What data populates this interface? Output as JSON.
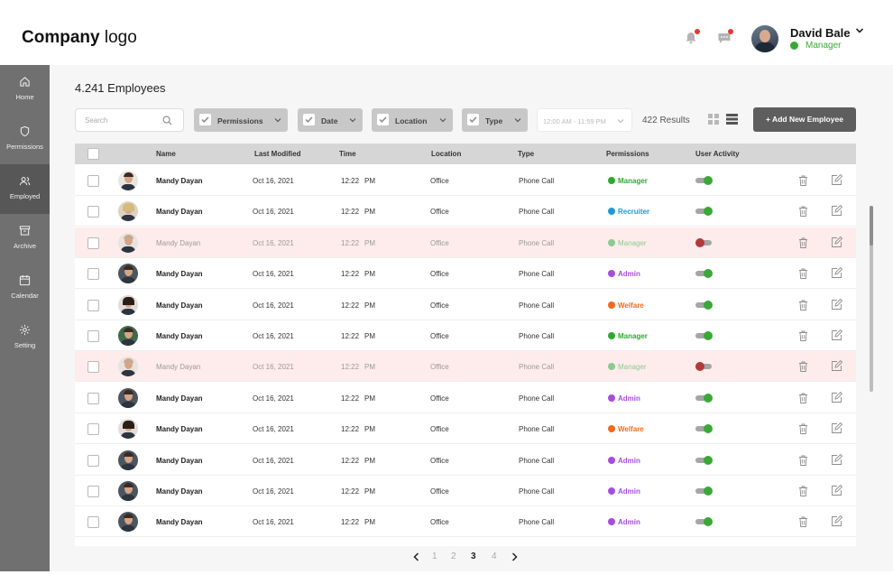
{
  "header": {
    "logo_bold": "Company",
    "logo_light": "logo",
    "user_name": "David Bale",
    "user_role": "Manager",
    "notification_icon": "bell-icon",
    "message_icon": "chat-icon"
  },
  "sidebar": {
    "items": [
      {
        "label": "Home",
        "icon": "home-icon"
      },
      {
        "label": "Permissions",
        "icon": "shield-icon"
      },
      {
        "label": "Employed",
        "icon": "users-icon",
        "active": true
      },
      {
        "label": "Archive",
        "icon": "archive-icon"
      },
      {
        "label": "Calendar",
        "icon": "calendar-icon"
      },
      {
        "label": "Setting",
        "icon": "gear-icon"
      }
    ]
  },
  "main": {
    "title": "4.241 Employees",
    "search_placeholder": "Search",
    "filters": [
      "Permissions",
      "Date",
      "Location",
      "Type"
    ],
    "time_range": "12:00 AM  -  11:59 PM",
    "results": "422 Results",
    "add_button": "+ Add New Employee"
  },
  "table": {
    "headers": [
      "Name",
      "Last Modified",
      "Time",
      "Location",
      "Type",
      "Permissions",
      "User Activity"
    ],
    "rows": [
      {
        "name": "Mandy Dayan",
        "modified": "Oct 16, 2021",
        "time": "12:22",
        "ampm": "PM",
        "location": "Office",
        "type": "Phone Call",
        "permission": "Manager",
        "perm_color": "#2eaa2e",
        "active": true,
        "disabled": false,
        "avatar": "v1"
      },
      {
        "name": "Mandy Dayan",
        "modified": "Oct 16, 2021",
        "time": "12:22",
        "ampm": "PM",
        "location": "Office",
        "type": "Phone Call",
        "permission": "Recruiter",
        "perm_color": "#1e9bd7",
        "active": true,
        "disabled": false,
        "avatar": "v2"
      },
      {
        "name": "Mandy Dayan",
        "modified": "Oct 16, 2021",
        "time": "12:22",
        "ampm": "PM",
        "location": "Office",
        "type": "Phone Call",
        "permission": "Manager",
        "perm_color": "#8fc98f",
        "active": false,
        "disabled": true,
        "avatar": "v3"
      },
      {
        "name": "Mandy Dayan",
        "modified": "Oct 16, 2021",
        "time": "12:22",
        "ampm": "PM",
        "location": "Office",
        "type": "Phone Call",
        "permission": "Admin",
        "perm_color": "#a64de0",
        "active": true,
        "disabled": false,
        "avatar": "v4"
      },
      {
        "name": "Mandy Dayan",
        "modified": "Oct 16, 2021",
        "time": "12:22",
        "ampm": "PM",
        "location": "Office",
        "type": "Phone Call",
        "permission": "Welfare",
        "perm_color": "#f06a1a",
        "active": true,
        "disabled": false,
        "avatar": "v5"
      },
      {
        "name": "Mandy Dayan",
        "modified": "Oct 16, 2021",
        "time": "12:22",
        "ampm": "PM",
        "location": "Office",
        "type": "Phone Call",
        "permission": "Manager",
        "perm_color": "#2eaa2e",
        "active": true,
        "disabled": false,
        "avatar": "v6"
      },
      {
        "name": "Mandy Dayan",
        "modified": "Oct 16, 2021",
        "time": "12:22",
        "ampm": "PM",
        "location": "Office",
        "type": "Phone Call",
        "permission": "Manager",
        "perm_color": "#8fc98f",
        "active": false,
        "disabled": true,
        "avatar": "v3"
      },
      {
        "name": "Mandy Dayan",
        "modified": "Oct 16, 2021",
        "time": "12:22",
        "ampm": "PM",
        "location": "Office",
        "type": "Phone Call",
        "permission": "Admin",
        "perm_color": "#a64de0",
        "active": true,
        "disabled": false,
        "avatar": "v4"
      },
      {
        "name": "Mandy Dayan",
        "modified": "Oct 16, 2021",
        "time": "12:22",
        "ampm": "PM",
        "location": "Office",
        "type": "Phone Call",
        "permission": "Welfare",
        "perm_color": "#f06a1a",
        "active": true,
        "disabled": false,
        "avatar": "v5"
      },
      {
        "name": "Mandy Dayan",
        "modified": "Oct 16, 2021",
        "time": "12:22",
        "ampm": "PM",
        "location": "Office",
        "type": "Phone Call",
        "permission": "Admin",
        "perm_color": "#a64de0",
        "active": true,
        "disabled": false,
        "avatar": "v4"
      },
      {
        "name": "Mandy Dayan",
        "modified": "Oct 16, 2021",
        "time": "12:22",
        "ampm": "PM",
        "location": "Office",
        "type": "Phone Call",
        "permission": "Admin",
        "perm_color": "#a64de0",
        "active": true,
        "disabled": false,
        "avatar": "v4"
      },
      {
        "name": "Mandy Dayan",
        "modified": "Oct 16, 2021",
        "time": "12:22",
        "ampm": "PM",
        "location": "Office",
        "type": "Phone Call",
        "permission": "Admin",
        "perm_color": "#a64de0",
        "active": true,
        "disabled": false,
        "avatar": "v4"
      }
    ]
  },
  "pagination": {
    "pages": [
      "1",
      "2",
      "3",
      "4"
    ],
    "current": "3"
  },
  "colors": {
    "active_toggle": "#3aa836",
    "inactive_toggle": "#b23a3a",
    "sidebar": "#707070",
    "sidebar_active": "#575757"
  }
}
